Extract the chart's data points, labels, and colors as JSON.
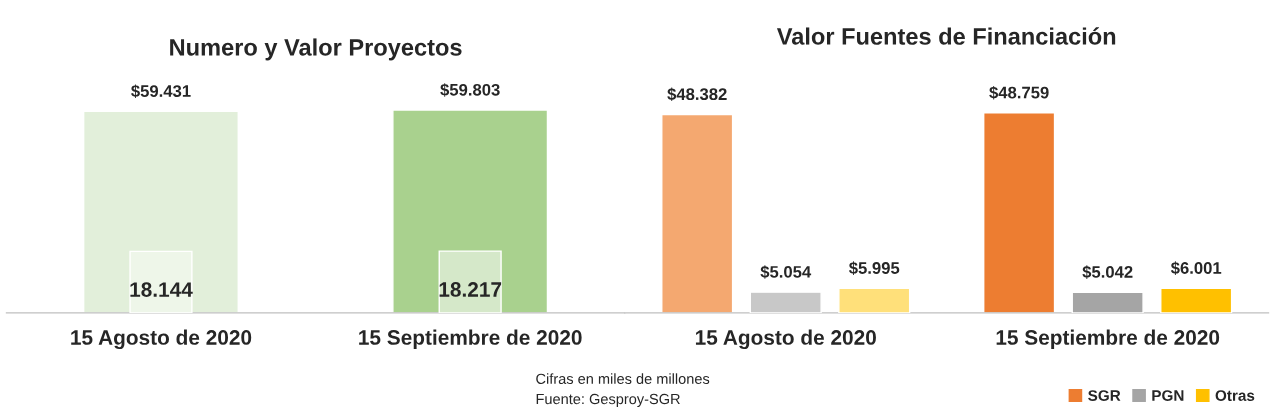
{
  "chart_data": [
    {
      "type": "bar",
      "title": "Numero y Valor Proyectos",
      "categories": [
        "15 Agosto de 2020",
        "15 Septiembre de 2020"
      ],
      "grid": false,
      "tick_labels": "x",
      "series": [
        {
          "colors": [
            "#e2efda",
            "#a9d18e"
          ],
          "values": [
            59431,
            59803
          ],
          "value_labels": [
            "$59.431",
            "$59.803"
          ]
        },
        {
          "colors": [
            "#eef6e9",
            "#d5e8c9"
          ],
          "values": [
            18144,
            18217
          ],
          "value_labels": [
            "18.144",
            "18.217"
          ]
        }
      ],
      "annotations": [
        "Cifras en miles de millones",
        "Fuente: Gesproy-SGR"
      ]
    },
    {
      "type": "bar",
      "title": "Valor Fuentes de Financiación",
      "categories": [
        "15 Agosto de 2020",
        "15 Septiembre de 2020"
      ],
      "grid": false,
      "legend": "bottom right",
      "tick_labels": "x",
      "series": [
        {
          "name": "SGR",
          "color": "#ed7d31",
          "colors": [
            "#f4a870",
            "#ed7d31"
          ],
          "values": [
            48382,
            48759
          ],
          "value_labels": [
            "$48.382",
            "$48.759"
          ]
        },
        {
          "name": "PGN",
          "color": "#a5a5a5",
          "colors": [
            "#c8c8c8",
            "#a5a5a5"
          ],
          "values": [
            5054,
            5042
          ],
          "value_labels": [
            "$5.054",
            "$5.042"
          ]
        },
        {
          "name": "Otras",
          "color": "#ffc000",
          "colors": [
            "#ffe07a",
            "#ffc000"
          ],
          "values": [
            5995,
            6001
          ],
          "value_labels": [
            "$5.995",
            "$6.001"
          ]
        }
      ]
    }
  ]
}
